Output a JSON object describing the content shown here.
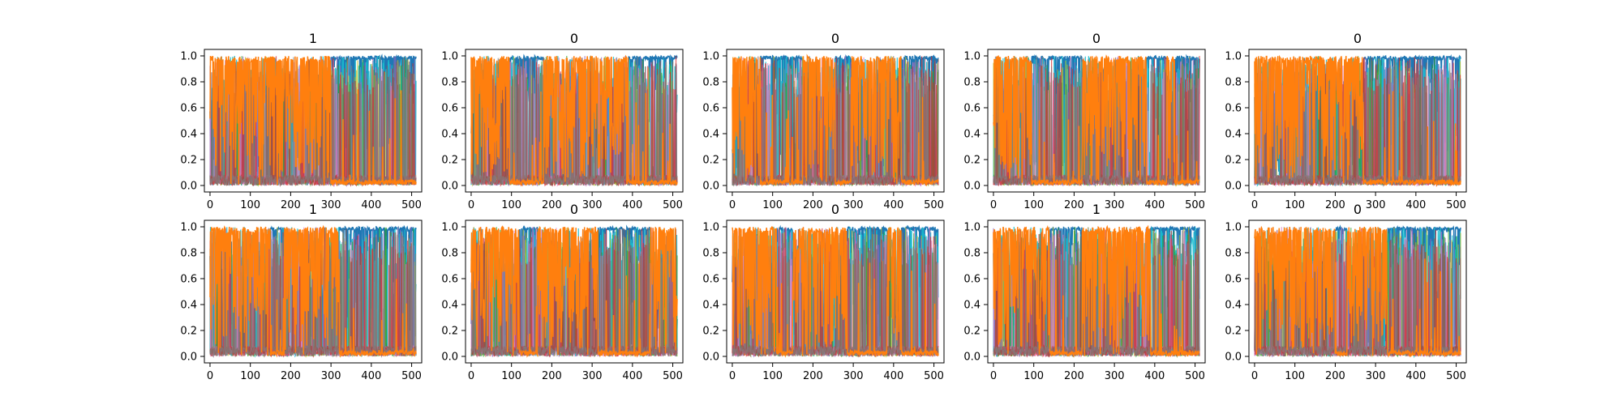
{
  "chart_data": {
    "type": "line",
    "layout": {
      "rows": 2,
      "cols": 5
    },
    "xlim": [
      -14,
      525
    ],
    "ylim": [
      -0.05,
      1.05
    ],
    "xticks": [
      0,
      100,
      200,
      300,
      400,
      500
    ],
    "yticks": [
      0.0,
      0.2,
      0.4,
      0.6,
      0.8,
      1.0
    ],
    "xtick_labels": [
      "0",
      "100",
      "200",
      "300",
      "400",
      "500"
    ],
    "ytick_labels": [
      "0.0",
      "0.2",
      "0.4",
      "0.6",
      "0.8",
      "1.0"
    ],
    "n_points": 512,
    "colors": {
      "dominant_a": "#1f77b4",
      "dominant_b": "#ff7f0e",
      "accents": [
        "#17becf",
        "#bcbd22",
        "#2ca02c",
        "#9467bd",
        "#e377c2",
        "#d62728",
        "#8c564b",
        "#7f7f7f"
      ]
    },
    "grid": false,
    "legend": "none",
    "panels": [
      {
        "title": "1",
        "segments": [
          [
            0,
            300,
            "b"
          ],
          [
            300,
            512,
            "a"
          ]
        ]
      },
      {
        "title": "0",
        "segments": [
          [
            0,
            95,
            "b"
          ],
          [
            95,
            180,
            "a"
          ],
          [
            180,
            390,
            "b"
          ],
          [
            390,
            512,
            "a"
          ]
        ]
      },
      {
        "title": "0",
        "segments": [
          [
            0,
            70,
            "b"
          ],
          [
            70,
            175,
            "a"
          ],
          [
            175,
            255,
            "b"
          ],
          [
            255,
            295,
            "a"
          ],
          [
            295,
            420,
            "b"
          ],
          [
            420,
            512,
            "a"
          ]
        ]
      },
      {
        "title": "0",
        "segments": [
          [
            0,
            95,
            "b"
          ],
          [
            95,
            220,
            "a"
          ],
          [
            220,
            380,
            "b"
          ],
          [
            380,
            430,
            "a"
          ],
          [
            430,
            450,
            "b"
          ],
          [
            450,
            512,
            "a"
          ]
        ]
      },
      {
        "title": "0",
        "segments": [
          [
            0,
            270,
            "b"
          ],
          [
            270,
            512,
            "a"
          ]
        ]
      },
      {
        "title": "1",
        "segments": [
          [
            0,
            150,
            "b"
          ],
          [
            150,
            185,
            "a"
          ],
          [
            185,
            320,
            "b"
          ],
          [
            320,
            512,
            "a"
          ]
        ]
      },
      {
        "title": "0",
        "segments": [
          [
            0,
            120,
            "b"
          ],
          [
            120,
            165,
            "a"
          ],
          [
            165,
            315,
            "b"
          ],
          [
            315,
            445,
            "a"
          ],
          [
            445,
            512,
            "b"
          ]
        ]
      },
      {
        "title": "0",
        "segments": [
          [
            0,
            110,
            "b"
          ],
          [
            110,
            150,
            "a"
          ],
          [
            150,
            285,
            "b"
          ],
          [
            285,
            385,
            "a"
          ],
          [
            385,
            420,
            "b"
          ],
          [
            420,
            512,
            "a"
          ]
        ]
      },
      {
        "title": "1",
        "segments": [
          [
            0,
            140,
            "b"
          ],
          [
            140,
            220,
            "a"
          ],
          [
            220,
            390,
            "b"
          ],
          [
            390,
            512,
            "a"
          ]
        ]
      },
      {
        "title": "0",
        "segments": [
          [
            0,
            200,
            "b"
          ],
          [
            200,
            230,
            "a"
          ],
          [
            230,
            330,
            "b"
          ],
          [
            330,
            512,
            "a"
          ]
        ]
      }
    ]
  }
}
